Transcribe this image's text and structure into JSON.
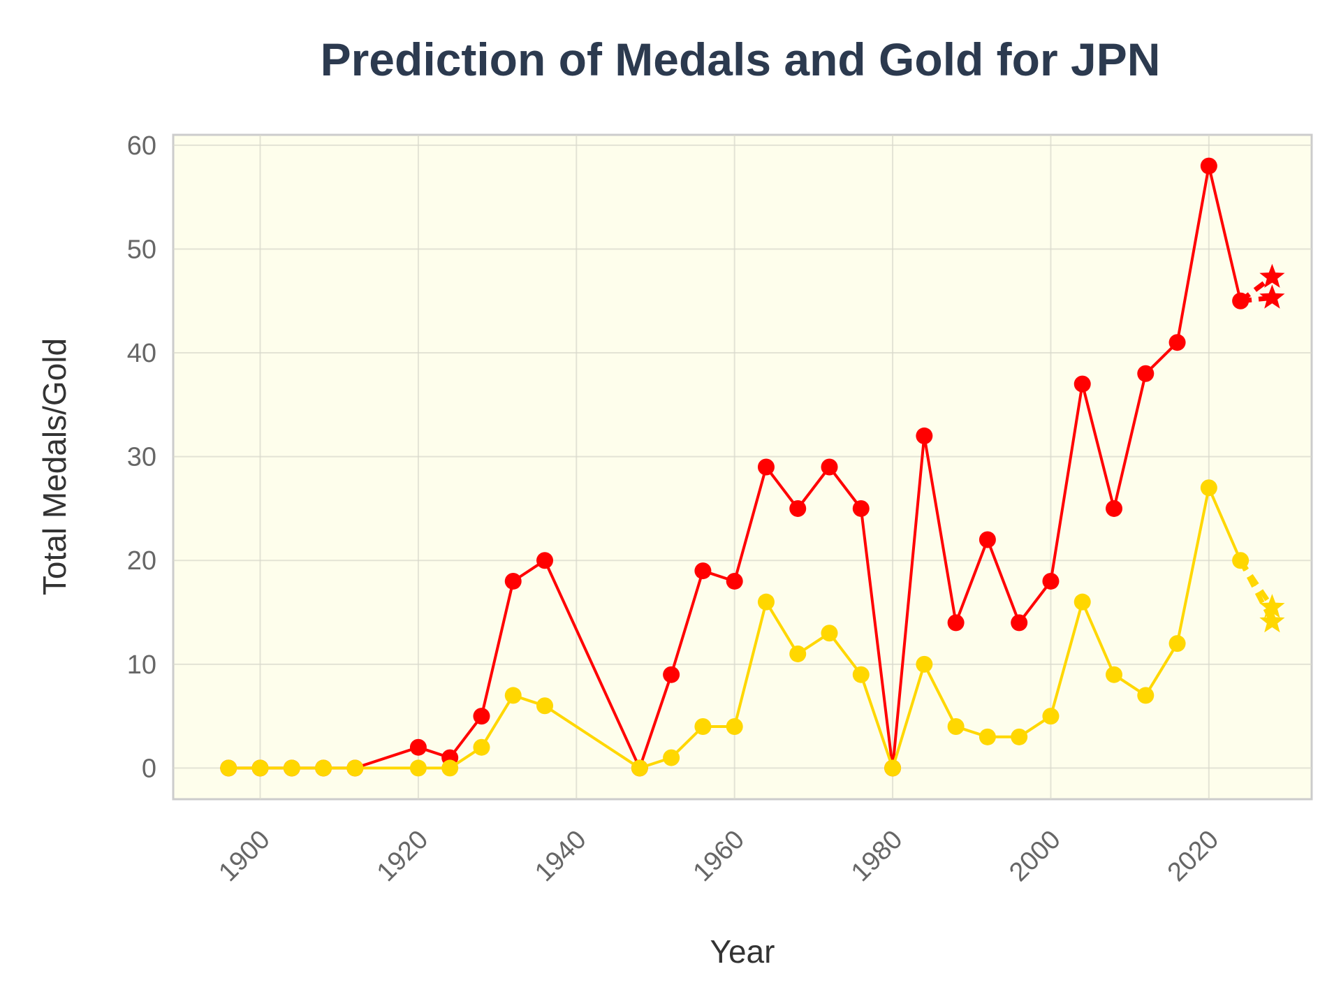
{
  "chart_data": {
    "type": "line",
    "title": "Prediction of Medals and Gold for JPN",
    "xlabel": "Year",
    "ylabel": "Total Medals/Gold",
    "xlim": [
      1889,
      2033
    ],
    "ylim": [
      -3,
      61
    ],
    "xticks": [
      1900,
      1920,
      1940,
      1960,
      1980,
      2000,
      2020
    ],
    "yticks": [
      0,
      10,
      20,
      30,
      40,
      50,
      60
    ],
    "grid": true,
    "legend": "none",
    "colors": {
      "background": "#fefeec",
      "frame": "#cccccc",
      "total": "#ff0000",
      "gold": "#ffd700"
    },
    "series": [
      {
        "color": "#ff0000",
        "marker": "circle",
        "x": [
          1896,
          1900,
          1904,
          1908,
          1912,
          1920,
          1924,
          1928,
          1932,
          1936,
          1948,
          1952,
          1956,
          1960,
          1964,
          1968,
          1972,
          1976,
          1980,
          1984,
          1988,
          1992,
          1996,
          2000,
          2004,
          2008,
          2012,
          2016,
          2020,
          2024
        ],
        "y": [
          0,
          0,
          0,
          0,
          0,
          2,
          1,
          5,
          18,
          20,
          0,
          9,
          19,
          18,
          29,
          25,
          29,
          25,
          0,
          32,
          14,
          22,
          14,
          18,
          37,
          25,
          38,
          41,
          58,
          45
        ]
      },
      {
        "color": "#ffd700",
        "marker": "circle",
        "x": [
          1896,
          1900,
          1904,
          1908,
          1912,
          1920,
          1924,
          1928,
          1932,
          1936,
          1948,
          1952,
          1956,
          1960,
          1964,
          1968,
          1972,
          1976,
          1980,
          1984,
          1988,
          1992,
          1996,
          2000,
          2004,
          2008,
          2012,
          2016,
          2020,
          2024
        ],
        "y": [
          0,
          0,
          0,
          0,
          0,
          0,
          0,
          2,
          7,
          6,
          0,
          1,
          4,
          4,
          16,
          11,
          13,
          9,
          0,
          10,
          4,
          3,
          3,
          5,
          16,
          9,
          7,
          12,
          27,
          20
        ]
      }
    ],
    "predictions": [
      {
        "color": "#ff0000",
        "from": [
          2024,
          45
        ],
        "x": 2028,
        "y": [
          45.3,
          47.3
        ],
        "marker": "star",
        "line": "dashed"
      },
      {
        "color": "#ffd700",
        "from": [
          2024,
          20
        ],
        "x": 2028,
        "y": [
          14.1,
          15.5
        ],
        "marker": "star",
        "line": "dashed"
      }
    ]
  }
}
